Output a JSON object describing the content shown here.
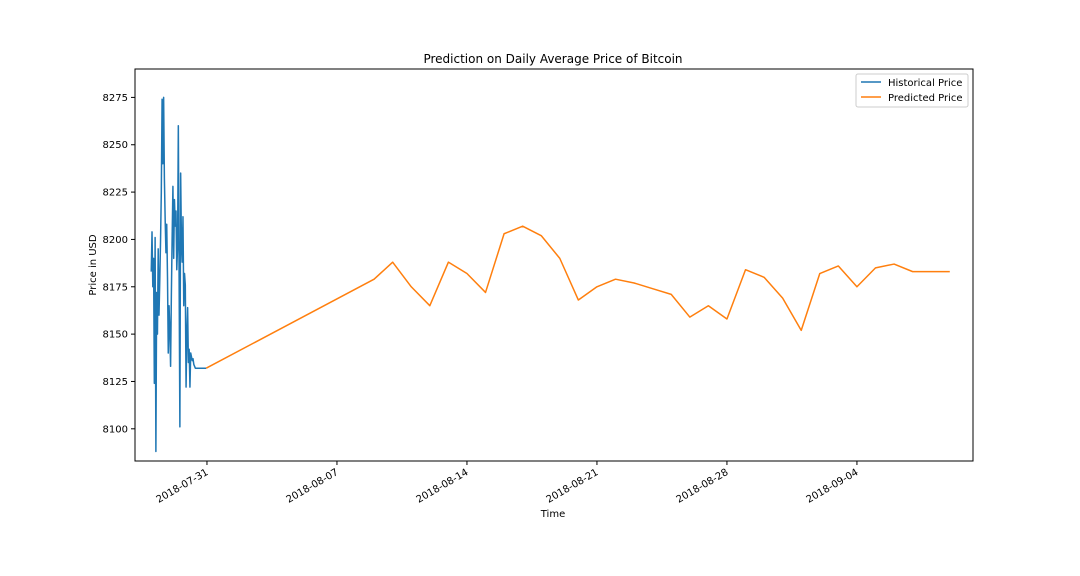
{
  "chart_data": {
    "type": "line",
    "title": "Prediction on Daily Average Price of Bitcoin",
    "xlabel": "Time",
    "ylabel": "Price in USD",
    "x_tick_labels": [
      "2018-07-31",
      "2018-08-07",
      "2018-08-14",
      "2018-08-21",
      "2018-08-28",
      "2018-09-04"
    ],
    "y_ticks": [
      8100,
      8125,
      8150,
      8175,
      8200,
      8225,
      8250,
      8275
    ],
    "xlim": [
      "2018-07-27T03:00",
      "2018-09-10T06:00"
    ],
    "ylim": [
      8083,
      8290
    ],
    "grid": false,
    "legend_position": "top-right",
    "series": [
      {
        "name": "Historical Price",
        "color": "#1f77b4",
        "x": [
          "2018-07-28T00:00",
          "2018-07-28T01:00",
          "2018-07-28T02:00",
          "2018-07-28T03:00",
          "2018-07-28T04:00",
          "2018-07-28T05:00",
          "2018-07-28T06:00",
          "2018-07-28T07:00",
          "2018-07-28T08:00",
          "2018-07-28T09:00",
          "2018-07-28T10:00",
          "2018-07-28T11:00",
          "2018-07-28T12:00",
          "2018-07-28T13:00",
          "2018-07-28T14:00",
          "2018-07-28T15:00",
          "2018-07-28T16:00",
          "2018-07-28T17:00",
          "2018-07-28T18:00",
          "2018-07-28T19:00",
          "2018-07-28T20:00",
          "2018-07-28T21:00",
          "2018-07-28T22:00",
          "2018-07-28T23:00",
          "2018-07-29T00:00",
          "2018-07-29T01:00",
          "2018-07-29T02:00",
          "2018-07-29T03:00",
          "2018-07-29T04:00",
          "2018-07-29T05:00",
          "2018-07-29T06:00",
          "2018-07-29T07:00",
          "2018-07-29T08:00",
          "2018-07-29T09:00",
          "2018-07-29T10:00",
          "2018-07-29T11:00",
          "2018-07-29T12:00",
          "2018-07-29T13:00",
          "2018-07-29T14:00",
          "2018-07-29T15:00",
          "2018-07-29T16:00",
          "2018-07-29T17:00",
          "2018-07-29T18:00",
          "2018-07-29T19:00",
          "2018-07-29T20:00",
          "2018-07-29T21:00",
          "2018-07-29T22:00",
          "2018-07-29T23:00",
          "2018-07-30T00:00",
          "2018-07-30T01:00",
          "2018-07-30T02:00",
          "2018-07-30T03:00",
          "2018-07-30T04:00",
          "2018-07-30T05:00",
          "2018-07-30T06:00",
          "2018-07-30T07:00",
          "2018-07-30T08:00",
          "2018-07-30T09:00",
          "2018-07-30T10:00",
          "2018-07-30T11:00",
          "2018-07-30T12:00",
          "2018-07-30T13:00",
          "2018-07-30T14:00",
          "2018-07-30T15:00",
          "2018-07-30T16:00",
          "2018-07-30T17:00",
          "2018-07-30T18:00",
          "2018-07-30T19:00",
          "2018-07-30T20:00",
          "2018-07-30T21:00",
          "2018-07-30T22:00",
          "2018-07-30T23:00"
        ],
        "values": [
          8183,
          8204,
          8175,
          8190,
          8124,
          8201,
          8088,
          8172,
          8150,
          8195,
          8160,
          8178,
          8199,
          8225,
          8274,
          8240,
          8275,
          8232,
          8210,
          8193,
          8208,
          8180,
          8140,
          8165,
          8152,
          8133,
          8171,
          8201,
          8228,
          8190,
          8221,
          8207,
          8215,
          8184,
          8196,
          8260,
          8180,
          8101,
          8235,
          8199,
          8188,
          8212,
          8165,
          8182,
          8176,
          8122,
          8150,
          8164,
          8135,
          8142,
          8122,
          8140,
          8138,
          8136,
          8137,
          8134,
          8133,
          8132,
          8132,
          8132,
          8132,
          8132,
          8132,
          8132,
          8132,
          8132,
          8132,
          8132,
          8132,
          8132,
          8132,
          8132
        ]
      },
      {
        "name": "Predicted Price",
        "color": "#ff7f0e",
        "x": [
          "2018-07-30T23:00",
          "2018-08-09",
          "2018-08-10",
          "2018-08-11",
          "2018-08-12",
          "2018-08-13",
          "2018-08-14",
          "2018-08-15",
          "2018-08-16",
          "2018-08-17",
          "2018-08-18",
          "2018-08-19",
          "2018-08-20",
          "2018-08-21",
          "2018-08-22",
          "2018-08-23",
          "2018-08-24",
          "2018-08-25",
          "2018-08-26",
          "2018-08-27",
          "2018-08-28",
          "2018-08-29",
          "2018-08-30",
          "2018-08-31",
          "2018-09-01",
          "2018-09-02",
          "2018-09-03",
          "2018-09-04",
          "2018-09-05",
          "2018-09-06",
          "2018-09-07",
          "2018-09-08",
          "2018-09-09"
        ],
        "values": [
          8132,
          8179,
          8188,
          8175,
          8165,
          8188,
          8182,
          8172,
          8203,
          8207,
          8202,
          8190,
          8168,
          8175,
          8179,
          8177,
          8174,
          8171,
          8159,
          8165,
          8158,
          8184,
          8180,
          8169,
          8152,
          8182,
          8186,
          8175,
          8185,
          8187,
          8183,
          8183,
          8183
        ]
      }
    ]
  }
}
